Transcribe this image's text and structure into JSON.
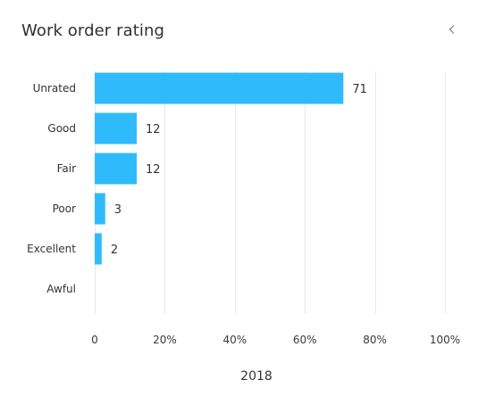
{
  "widget": {
    "title": "Work order rating",
    "back_icon": "chevron-left-icon"
  },
  "chart_data": {
    "type": "bar",
    "orientation": "horizontal",
    "title": "Work order rating",
    "xlabel": "2018",
    "ylabel": "",
    "categories": [
      "Unrated",
      "Good",
      "Fair",
      "Poor",
      "Excellent",
      "Awful"
    ],
    "values": [
      71,
      12,
      12,
      3,
      2,
      0
    ],
    "percent_of_total": [
      71,
      12,
      12,
      3,
      2,
      0
    ],
    "data_labels": [
      "71",
      "12",
      "12",
      "3",
      "2",
      ""
    ],
    "xlim": [
      0,
      100
    ],
    "x_ticks": [
      "0",
      "20%",
      "40%",
      "60%",
      "80%",
      "100%"
    ],
    "grid": true,
    "bar_color": "#2fbbfb",
    "grid_color": "#e8e8e8",
    "legend": "none"
  }
}
